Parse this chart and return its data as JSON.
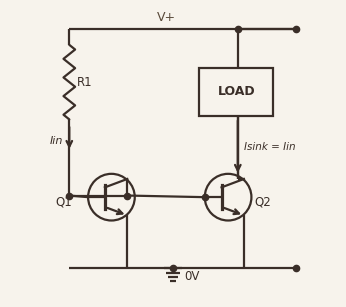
{
  "bg_color": "#f7f3ec",
  "line_color": "#3a2e28",
  "line_width": 1.6,
  "vplus_label": "V+",
  "vplus_color": "#5a4a3a",
  "ov_label": "0V",
  "r1_label": "R1",
  "q1_label": "Q1",
  "q2_label": "Q2",
  "load_label": "LOAD",
  "iin_label": "Iin",
  "isink_label": "Isink = Iin",
  "fig_width": 3.46,
  "fig_height": 3.07,
  "dpi": 100
}
